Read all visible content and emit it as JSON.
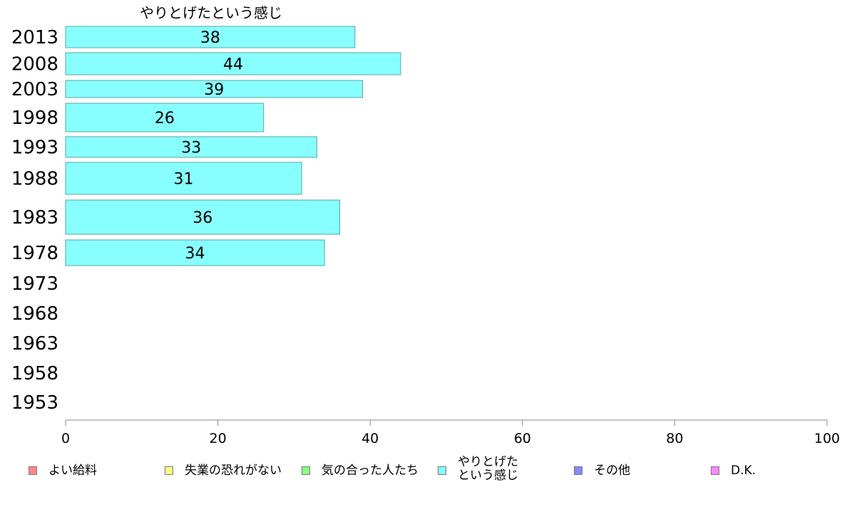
{
  "chart_data": {
    "type": "bar",
    "orientation": "horizontal",
    "title": "やりとげたという感じ",
    "categories": [
      "2013",
      "2008",
      "2003",
      "1998",
      "1993",
      "1988",
      "1983",
      "1978",
      "1973",
      "1968",
      "1963",
      "1958",
      "1953"
    ],
    "series": [
      {
        "name": "やりとげたという感じ",
        "values": [
          38,
          44,
          39,
          26,
          33,
          31,
          36,
          34,
          null,
          null,
          null,
          null,
          null
        ]
      }
    ],
    "data_labels": [
      "38",
      "44",
      "39",
      "26",
      "33",
      "31",
      "36",
      "34",
      "",
      "",
      "",
      "",
      ""
    ],
    "xlim": [
      0,
      100
    ],
    "x_ticks": [
      "0",
      "20",
      "40",
      "60",
      "80",
      "100"
    ],
    "grid": false,
    "legend_position": "bottom",
    "colors": {
      "bar": "#88ffff",
      "bar_stroke": "#5aa6a6",
      "axis": "#888888"
    }
  },
  "legend": [
    {
      "label": "よい給料",
      "color": "#ff8888"
    },
    {
      "label": "失業の恐れがない",
      "color": "#ffff88"
    },
    {
      "label": "気の合った人たち",
      "color": "#88ff88"
    },
    {
      "label": "やりとげた\nという感じ",
      "color": "#88ffff"
    },
    {
      "label": "その他",
      "color": "#8888ff"
    },
    {
      "label": "D.K.",
      "color": "#ff88ff"
    }
  ]
}
